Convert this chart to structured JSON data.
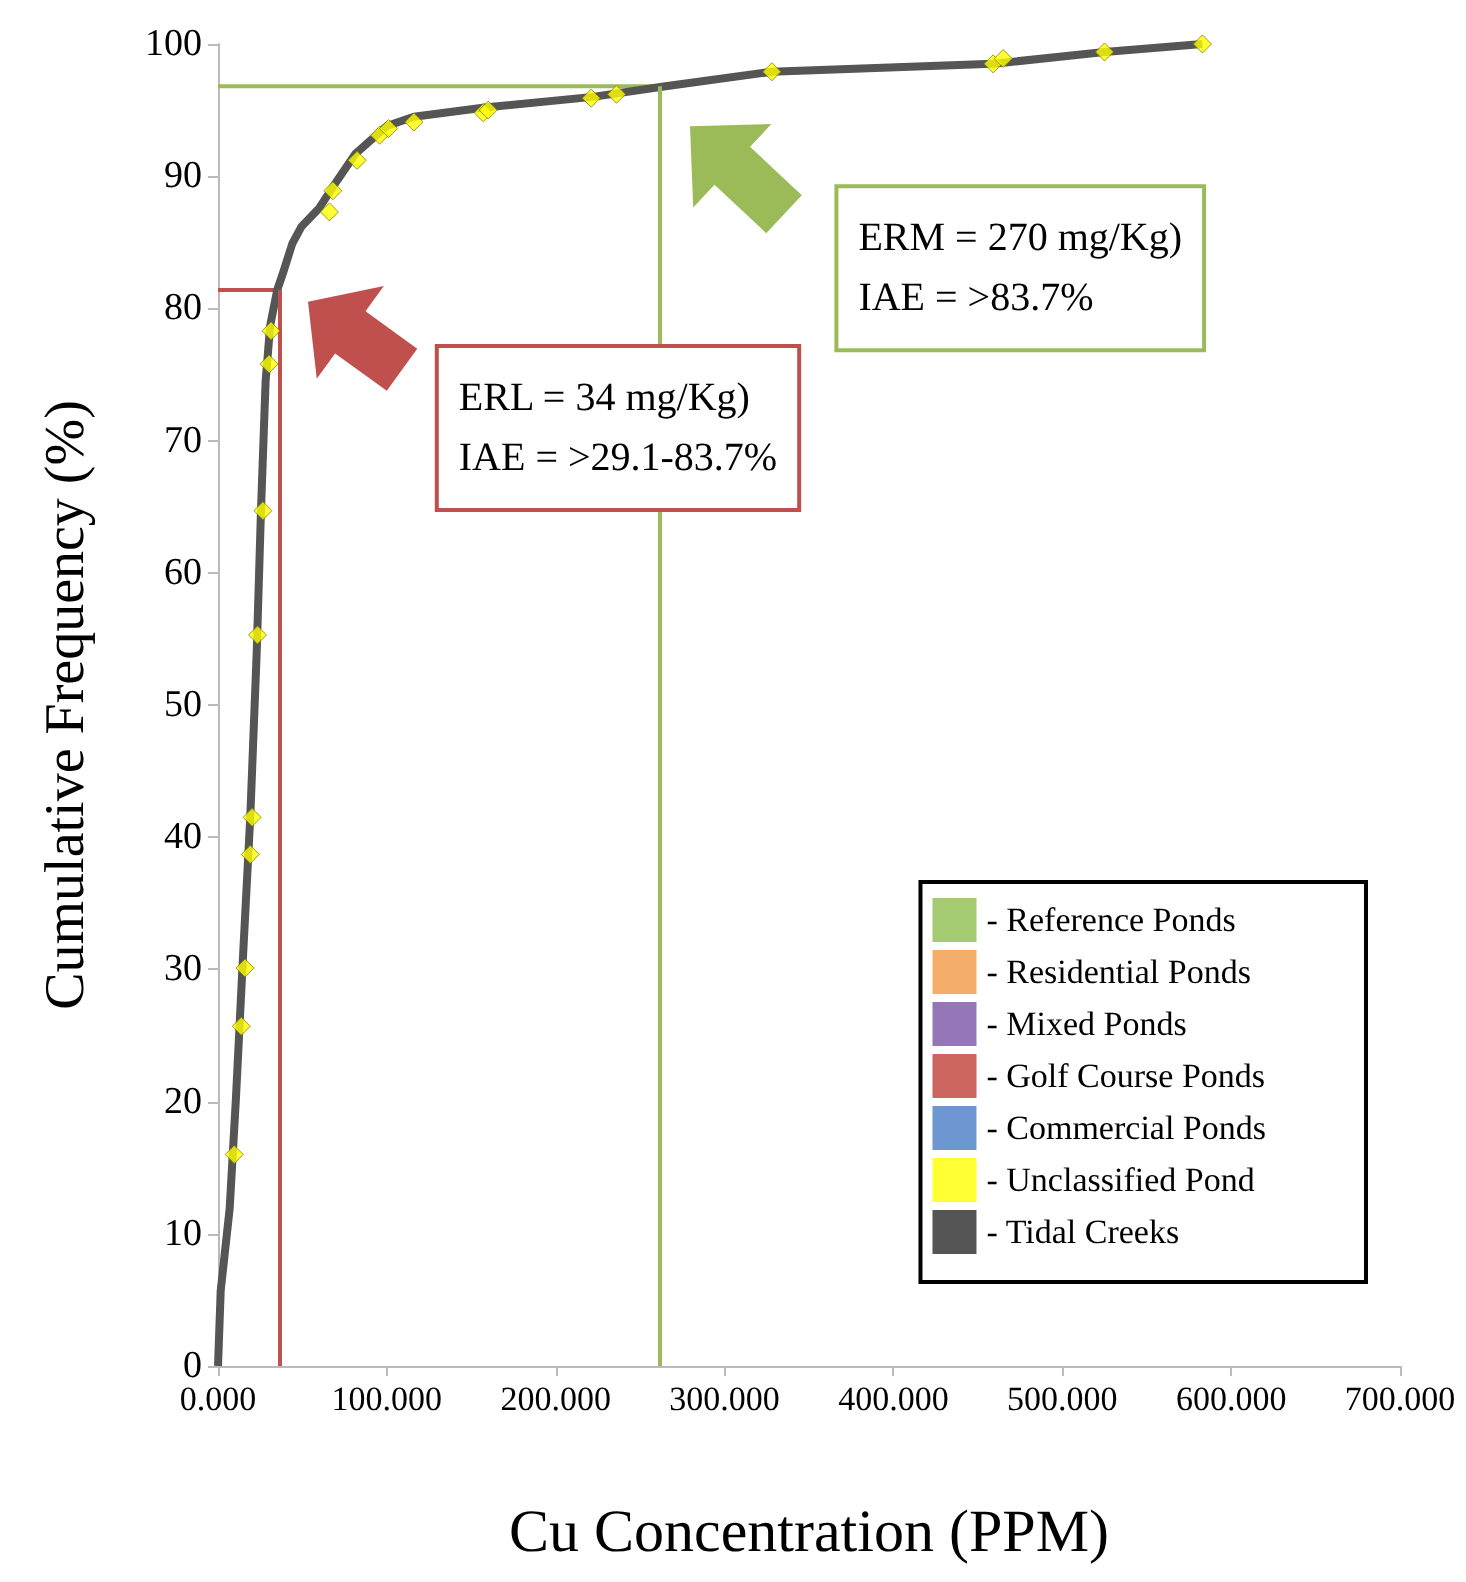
{
  "chart_data": {
    "type": "line",
    "xlabel": "Cu Concentration (PPM)",
    "ylabel": "Cumulative Frequency (%)",
    "xlim": [
      0,
      700
    ],
    "xticks": [
      {
        "value": 0,
        "label": "0.000"
      },
      {
        "value": 100,
        "label": "100.000"
      },
      {
        "value": 200,
        "label": "200.000"
      },
      {
        "value": 300,
        "label": "300.000"
      },
      {
        "value": 400,
        "label": "400.000"
      },
      {
        "value": 500,
        "label": "500.000"
      },
      {
        "value": 600,
        "label": "600.000"
      },
      {
        "value": 700,
        "label": "700.000"
      }
    ],
    "ylim": [
      0,
      100
    ],
    "yticks": [
      0,
      10,
      20,
      30,
      40,
      50,
      60,
      70,
      80,
      90,
      100
    ],
    "grid": false,
    "legend": "bottom right",
    "series": [
      {
        "name": "- Reference Ponds",
        "type": "scatter",
        "color": "#8fbf4f"
      },
      {
        "name": "- Residential Ponds",
        "type": "scatter",
        "color": "#f39a45"
      },
      {
        "name": "- Mixed Ponds",
        "type": "scatter",
        "color": "#7b55a6"
      },
      {
        "name": "- Golf Course Ponds",
        "type": "scatter",
        "color": "#c0403a"
      },
      {
        "name": "- Commercial Ponds",
        "type": "scatter",
        "color": "#4a7cc4"
      },
      {
        "name": "- Unclassified Pond",
        "type": "scatter",
        "color": "#ffff00",
        "marker": "diamond",
        "x": [
          9.6,
          13.8,
          16,
          19.1,
          20.2,
          23.4,
          26.6,
          30.3,
          31.4,
          66,
          68,
          82.4,
          95.7,
          101,
          116,
          157,
          160,
          221,
          236,
          328,
          459,
          465,
          525,
          583
        ],
        "values": [
          16,
          25.7,
          30.1,
          38.7,
          41.5,
          55.3,
          64.7,
          75.8,
          78.3,
          87.3,
          88.9,
          91.2,
          93.1,
          93.6,
          94.1,
          94.8,
          95,
          95.9,
          96.2,
          97.9,
          98.5,
          98.9,
          99.4,
          100
        ]
      },
      {
        "name": "- Tidal Creeks",
        "color": "#555555",
        "marker": "none",
        "x": [
          0,
          1.6,
          6.9,
          10.6,
          14.9,
          19.1,
          22.9,
          25.5,
          28.2,
          30.9,
          35.1,
          38.8,
          44,
          49.5,
          60,
          70.7,
          81.4,
          100,
          116,
          158,
          222,
          265,
          328,
          459,
          525,
          583
        ],
        "values": [
          0,
          5.7,
          11.9,
          20.2,
          31.2,
          41.5,
          53.9,
          64.9,
          74.5,
          78.7,
          81.4,
          82.8,
          84.9,
          86.2,
          87.6,
          89.7,
          91.7,
          93.8,
          94.5,
          95.2,
          96,
          96.8,
          97.9,
          98.5,
          99.4,
          100
        ]
      },
      {
        "color": "#c0504d",
        "marker": "none",
        "x": [
          0,
          36
        ],
        "values": [
          81.4,
          81.4
        ]
      },
      {
        "color": "#9bbb59",
        "marker": "none",
        "x": [
          0,
          262
        ],
        "values": [
          96.8,
          96.8
        ]
      }
    ],
    "ref_lines": [
      {
        "axis": "x",
        "value": 36,
        "color": "#c0504d"
      },
      {
        "axis": "x",
        "value": 262,
        "color": "#9bbb59"
      }
    ],
    "annotations": [
      "ERL = 34 mg/Kg)\nIAE = >29.1-83.7%",
      "ERM = 270 mg/Kg)\nIAE = >83.7%"
    ]
  }
}
